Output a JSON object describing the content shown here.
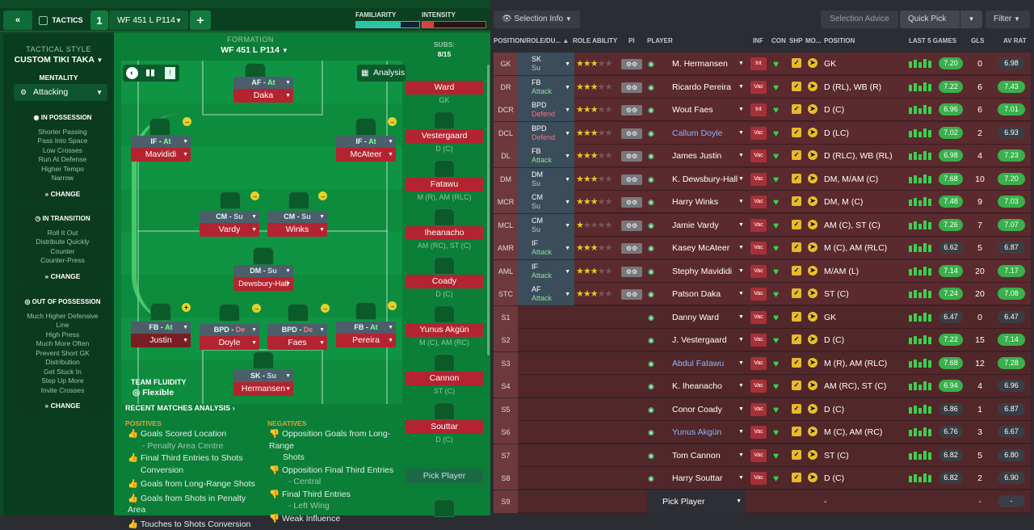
{
  "top": {
    "back_icon": "double-chevron-left-icon",
    "tactics_label": "TACTICS",
    "slot_number": "1",
    "tactic_name": "WF 451 L P114",
    "add_icon": "plus-icon",
    "familiarity_label": "FAMILIARITY",
    "intensity_label": "INTENSITY",
    "selection_info": "Selection Info",
    "selection_advice": "Selection Advice",
    "quick_pick": "Quick Pick",
    "filter": "Filter"
  },
  "style": {
    "tactical_style_label": "TACTICAL STYLE",
    "style_name": "CUSTOM TIKI TAKA",
    "mentality_label": "MENTALITY",
    "mentality_value": "Attacking",
    "in_possession": {
      "title": "IN POSSESSION",
      "items": [
        "Shorter Passing",
        "Pass Into Space",
        "Low Crosses",
        "Run At Defense",
        "Higher Tempo",
        "Narrow"
      ]
    },
    "in_transition": {
      "title": "IN TRANSITION",
      "items": [
        "Roll It Out",
        "Distribute Quickly",
        "Counter",
        "Counter-Press"
      ]
    },
    "out_possession": {
      "title": "OUT OF POSSESSION",
      "items": [
        "Much Higher Defensive",
        "Line",
        "High Press",
        "Much More Often",
        "Prevent Short GK",
        "Distribution",
        "Get Stuck In",
        "Step Up More",
        "Invite Crosses"
      ]
    },
    "change_label": "CHANGE"
  },
  "formation": {
    "label": "FORMATION",
    "name": "WF 451 L P114",
    "analysis": "Analysis",
    "team_fluidity_label": "TEAM FLUIDITY",
    "team_fluidity_value": "Flexible",
    "players": [
      {
        "role": "AF",
        "duty": "At",
        "name": "Daka"
      },
      {
        "role": "IF",
        "duty": "At",
        "name": "Mavididi"
      },
      {
        "role": "IF",
        "duty": "At",
        "name": "McAteer"
      },
      {
        "role": "CM",
        "duty": "Su",
        "name": "Vardy"
      },
      {
        "role": "CM",
        "duty": "Su",
        "name": "Winks"
      },
      {
        "role": "DM",
        "duty": "Su",
        "name": "Dewsbury-Hall"
      },
      {
        "role": "FB",
        "duty": "At",
        "name": "Justin"
      },
      {
        "role": "BPD",
        "duty": "De",
        "name": "Doyle"
      },
      {
        "role": "BPD",
        "duty": "De",
        "name": "Faes"
      },
      {
        "role": "FB",
        "duty": "At",
        "name": "Pereira"
      },
      {
        "role": "SK",
        "duty": "Su",
        "name": "Hermansen"
      }
    ]
  },
  "subs": {
    "label": "SUBS:",
    "count": "8/15",
    "players": [
      {
        "name": "Ward",
        "pos": "GK"
      },
      {
        "name": "Vestergaard",
        "pos": "D (C)"
      },
      {
        "name": "Fatawu",
        "pos": "M (R), AM (RLC)"
      },
      {
        "name": "Iheanacho",
        "pos": "AM (RC), ST (C)"
      },
      {
        "name": "Coady",
        "pos": "D (C)"
      },
      {
        "name": "Yunus Akgün",
        "pos": "M (C), AM (RC)"
      },
      {
        "name": "Cannon",
        "pos": "ST (C)"
      },
      {
        "name": "Souttar",
        "pos": "D (C)"
      }
    ],
    "pick_player": "Pick Player"
  },
  "analysis": {
    "title": "RECENT MATCHES ANALYSIS",
    "positives_label": "POSITIVES",
    "negatives_label": "NEGATIVES",
    "positives": [
      "Goals Scored Location",
      "- Penalty Area Centre",
      "Final Third Entries to Shots",
      "Conversion",
      "Goals from Long-Range Shots",
      "Goals from Shots in Penalty Area",
      "Touches to Shots Conversion"
    ],
    "negatives": [
      "Opposition Goals from Long-Range",
      "Shots",
      "Opposition Final Third Entries",
      "- Central",
      "Final Third Entries",
      "- Left Wing",
      "Weak Influence"
    ]
  },
  "table": {
    "headers": {
      "pos": "POSITION/ROLE/DU...",
      "ability": "ROLE ABILITY",
      "pi": "PI",
      "player": "PLAYER",
      "inf": "INF",
      "con": "CON",
      "shp": "SHP",
      "mo": "MO...",
      "position": "POSITION",
      "last5": "LAST 5 GAMES",
      "gls": "GLS",
      "avrat": "AV RAT"
    },
    "rows": [
      {
        "slot": "GK",
        "role": "SK",
        "duty": "Su",
        "stars": 3,
        "player": "M. Hermansen",
        "inf": "Int",
        "position": "GK",
        "rating": "7.20",
        "gls": "0",
        "av": "6.98"
      },
      {
        "slot": "DR",
        "role": "FB",
        "duty": "Attack",
        "stars": 3,
        "player": "Ricardo Pereira",
        "inf": "Vac",
        "position": "D (RL), WB (R)",
        "rating": "7.22",
        "gls": "6",
        "av": "7.43"
      },
      {
        "slot": "DCR",
        "role": "BPD",
        "duty": "Defend",
        "stars": 3,
        "player": "Wout Faes",
        "inf": "Int",
        "position": "D (C)",
        "rating": "6.96",
        "gls": "6",
        "av": "7.01"
      },
      {
        "slot": "DCL",
        "role": "BPD",
        "duty": "Defend",
        "stars": 3,
        "player": "Callum Doyle",
        "inf": "Vac",
        "position": "D (LC)",
        "rating": "7.02",
        "gls": "2",
        "av": "6.93"
      },
      {
        "slot": "DL",
        "role": "FB",
        "duty": "Attack",
        "stars": 3,
        "player": "James Justin",
        "inf": "Vac",
        "position": "D (RLC), WB (RL)",
        "rating": "6.98",
        "gls": "4",
        "av": "7.23"
      },
      {
        "slot": "DM",
        "role": "DM",
        "duty": "Su",
        "stars": 3,
        "player": "K. Dewsbury-Hall",
        "inf": "Vac",
        "position": "DM, M/AM (C)",
        "rating": "7.68",
        "gls": "10",
        "av": "7.20"
      },
      {
        "slot": "MCR",
        "role": "CM",
        "duty": "Su",
        "stars": 3,
        "player": "Harry Winks",
        "inf": "Vac",
        "position": "DM, M (C)",
        "rating": "7.48",
        "gls": "9",
        "av": "7.03"
      },
      {
        "slot": "MCL",
        "role": "CM",
        "duty": "Su",
        "stars": 1,
        "player": "Jamie Vardy",
        "inf": "Vac",
        "position": "AM (C), ST (C)",
        "rating": "7.26",
        "gls": "7",
        "av": "7.07"
      },
      {
        "slot": "AMR",
        "role": "IF",
        "duty": "Attack",
        "stars": 3,
        "player": "Kasey McAteer",
        "inf": "Vac",
        "position": "M (C), AM (RLC)",
        "rating": "6.62",
        "gls": "5",
        "av": "6.87"
      },
      {
        "slot": "AML",
        "role": "IF",
        "duty": "Attack",
        "stars": 3,
        "player": "Stephy Mavididi",
        "inf": "Vac",
        "position": "M/AM (L)",
        "rating": "7.14",
        "gls": "20",
        "av": "7.17"
      },
      {
        "slot": "STC",
        "role": "AF",
        "duty": "Attack",
        "stars": 3,
        "player": "Patson Daka",
        "inf": "Vac",
        "position": "ST (C)",
        "rating": "7.24",
        "gls": "20",
        "av": "7.08"
      },
      {
        "slot": "S1",
        "role": "",
        "duty": "",
        "stars": 0,
        "player": "Danny Ward",
        "inf": "Vac",
        "position": "GK",
        "rating": "6.47",
        "gls": "0",
        "av": "6.47"
      },
      {
        "slot": "S2",
        "role": "",
        "duty": "",
        "stars": 0,
        "player": "J. Vestergaard",
        "inf": "Vac",
        "position": "D (C)",
        "rating": "7.22",
        "gls": "15",
        "av": "7.14"
      },
      {
        "slot": "S3",
        "role": "",
        "duty": "",
        "stars": 0,
        "player": "Abdul Fatawu",
        "inf": "Vac",
        "position": "M (R), AM (RLC)",
        "rating": "7.68",
        "gls": "12",
        "av": "7.28"
      },
      {
        "slot": "S4",
        "role": "",
        "duty": "",
        "stars": 0,
        "player": "K. Iheanacho",
        "inf": "Vac",
        "position": "AM (RC), ST (C)",
        "rating": "6.94",
        "gls": "4",
        "av": "6.96"
      },
      {
        "slot": "S5",
        "role": "",
        "duty": "",
        "stars": 0,
        "player": "Conor Coady",
        "inf": "Vac",
        "position": "D (C)",
        "rating": "6.86",
        "gls": "1",
        "av": "6.87"
      },
      {
        "slot": "S6",
        "role": "",
        "duty": "",
        "stars": 0,
        "player": "Yunus Akgün",
        "inf": "Vac",
        "position": "M (C), AM (RC)",
        "rating": "6.76",
        "gls": "3",
        "av": "6.67"
      },
      {
        "slot": "S7",
        "role": "",
        "duty": "",
        "stars": 0,
        "player": "Tom Cannon",
        "inf": "Vac",
        "position": "ST (C)",
        "rating": "6.82",
        "gls": "5",
        "av": "6.80"
      },
      {
        "slot": "S8",
        "role": "",
        "duty": "",
        "stars": 0,
        "player": "Harry Souttar",
        "inf": "Vac",
        "position": "D (C)",
        "rating": "6.82",
        "gls": "2",
        "av": "6.90"
      },
      {
        "slot": "S9",
        "role": "",
        "duty": "",
        "stars": 0,
        "player": "Pick Player",
        "inf": "",
        "position": "-",
        "rating": "",
        "gls": "-",
        "av": "-"
      }
    ]
  },
  "colors": {
    "pitch": "#0e8a3e",
    "card_red": "#b42430",
    "row_bg": "#5a2a2e",
    "green_accent": "#3ccf4c"
  }
}
